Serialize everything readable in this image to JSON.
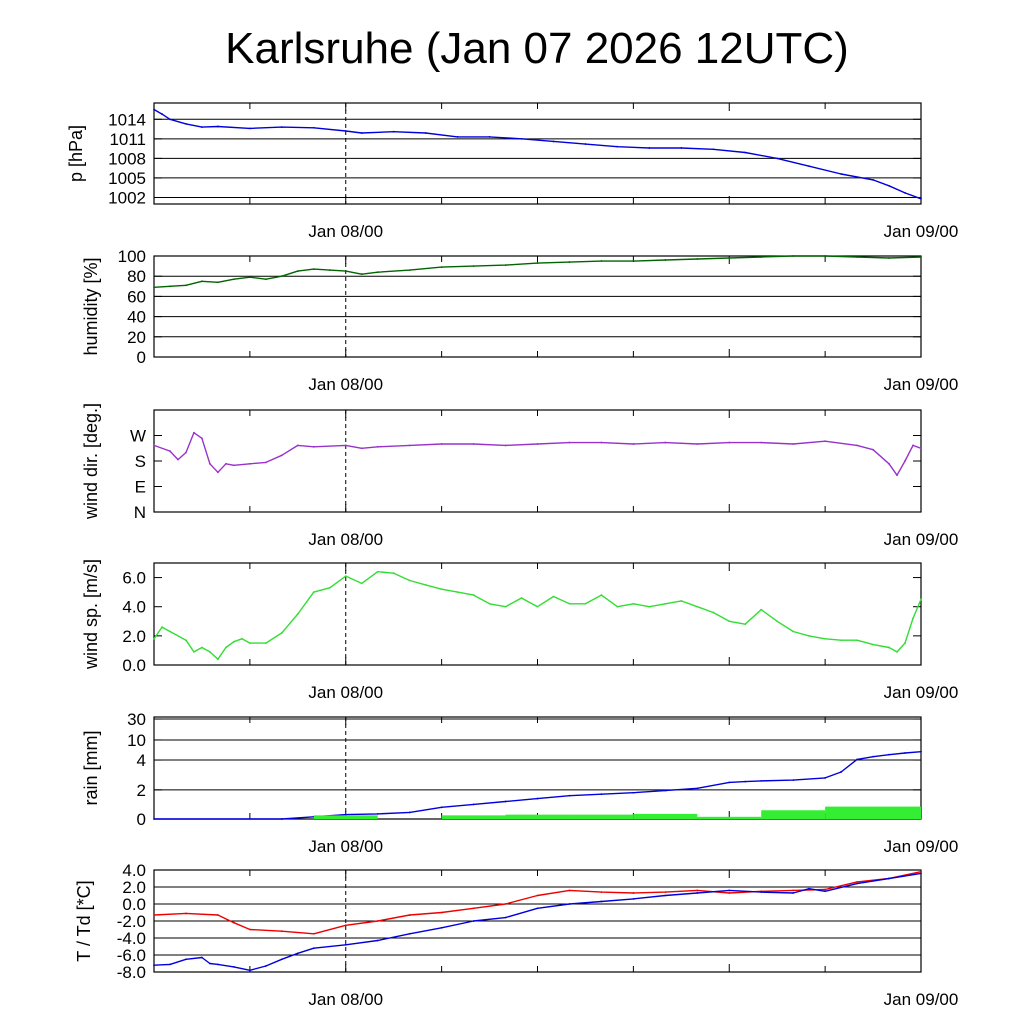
{
  "title": "Karlsruhe (Jan 07 2026 12UTC)",
  "x_tick_labels": [
    "Jan 08/00",
    "Jan 09/00"
  ],
  "chart_data": [
    {
      "type": "line",
      "ylabel": "p [hPa]",
      "yticks": [
        1002,
        1005,
        1008,
        1011,
        1014
      ],
      "ytick_labels": [
        "1002",
        "1005",
        "1008",
        "1011",
        "1014"
      ],
      "ylim": [
        1001,
        1016.5
      ],
      "x_range_hours": [
        12,
        60
      ],
      "grid": "horizontal",
      "series": [
        {
          "color": "#0000dd",
          "x": [
            12,
            12.5,
            13,
            14,
            15,
            16,
            18,
            20,
            22,
            24,
            25,
            27,
            29,
            31,
            33,
            35,
            37,
            39,
            41,
            43,
            45,
            47,
            49,
            51,
            53,
            55,
            57,
            58,
            59,
            60
          ],
          "y": [
            1015.5,
            1014.8,
            1014.0,
            1013.3,
            1012.8,
            1012.9,
            1012.6,
            1012.8,
            1012.7,
            1012.2,
            1011.9,
            1012.1,
            1011.9,
            1011.3,
            1011.3,
            1011.0,
            1010.6,
            1010.2,
            1009.8,
            1009.6,
            1009.6,
            1009.4,
            1008.9,
            1008.0,
            1006.8,
            1005.6,
            1004.7,
            1003.8,
            1002.7,
            1001.8
          ]
        }
      ]
    },
    {
      "type": "line",
      "ylabel": "humidity [%]",
      "yticks": [
        0,
        20,
        40,
        60,
        80,
        100
      ],
      "ytick_labels": [
        "0",
        "20",
        "40",
        "60",
        "80",
        "100"
      ],
      "ylim": [
        0,
        100
      ],
      "x_range_hours": [
        12,
        60
      ],
      "grid": "horizontal",
      "series": [
        {
          "color": "#006400",
          "x": [
            12,
            13,
            14,
            15,
            16,
            17,
            18,
            19,
            20,
            21,
            22,
            23,
            24,
            25,
            26,
            28,
            30,
            32,
            34,
            36,
            38,
            40,
            42,
            44,
            46,
            48,
            50,
            52,
            54,
            56,
            58,
            60
          ],
          "y": [
            69,
            70,
            71,
            75,
            74,
            77,
            79,
            77,
            80,
            85,
            87,
            86,
            85,
            82,
            84,
            86,
            89,
            90,
            91,
            93,
            94,
            95,
            95,
            96,
            97,
            98,
            99,
            100,
            100,
            99,
            98,
            99
          ]
        }
      ]
    },
    {
      "type": "line",
      "ylabel": "wind dir. [deg.]",
      "yticks": [
        0,
        90,
        180,
        270
      ],
      "ytick_labels": [
        "N",
        "E",
        "S",
        "W"
      ],
      "ylim": [
        0,
        360
      ],
      "x_range_hours": [
        12,
        60
      ],
      "grid": "none",
      "series": [
        {
          "color": "#9932cc",
          "x": [
            12,
            13,
            13.5,
            14,
            14.5,
            15,
            15.5,
            16,
            16.5,
            17,
            18,
            19,
            20,
            21,
            22,
            24,
            25,
            26,
            28,
            30,
            32,
            34,
            36,
            38,
            40,
            42,
            44,
            46,
            48,
            50,
            52,
            54,
            56,
            57,
            58,
            58.5,
            59,
            59.5,
            60
          ],
          "y": [
            235,
            215,
            185,
            210,
            280,
            260,
            170,
            140,
            170,
            165,
            170,
            175,
            200,
            235,
            230,
            235,
            225,
            230,
            235,
            240,
            240,
            235,
            240,
            245,
            245,
            240,
            245,
            240,
            245,
            245,
            240,
            250,
            235,
            220,
            170,
            130,
            180,
            235,
            225
          ]
        }
      ]
    },
    {
      "type": "line",
      "ylabel": "wind sp. [m/s]",
      "yticks": [
        0,
        2,
        4,
        6
      ],
      "ytick_labels": [
        "0.0",
        "2.0",
        "4.0",
        "6.0"
      ],
      "ylim": [
        0,
        7
      ],
      "x_range_hours": [
        12,
        60
      ],
      "grid": "none",
      "series": [
        {
          "color": "#33dd33",
          "x": [
            12,
            12.5,
            13,
            14,
            14.5,
            15,
            15.5,
            16,
            16.5,
            17,
            17.5,
            18,
            19,
            20,
            21,
            22,
            23,
            24,
            25,
            26,
            27,
            28,
            29,
            30,
            31,
            32,
            33,
            34,
            35,
            36,
            37,
            38,
            39,
            40,
            41,
            42,
            43,
            44,
            45,
            46,
            47,
            48,
            49,
            50,
            51,
            52,
            53,
            54,
            55,
            56,
            57,
            58,
            58.5,
            59,
            59.5,
            60
          ],
          "y": [
            1.8,
            2.6,
            2.3,
            1.7,
            0.9,
            1.2,
            0.9,
            0.4,
            1.2,
            1.6,
            1.8,
            1.5,
            1.5,
            2.2,
            3.5,
            5.0,
            5.3,
            6.1,
            5.6,
            6.4,
            6.3,
            5.8,
            5.5,
            5.2,
            5.0,
            4.8,
            4.2,
            4.0,
            4.6,
            4.0,
            4.7,
            4.2,
            4.2,
            4.8,
            4.0,
            4.2,
            4.0,
            4.2,
            4.4,
            4.0,
            3.6,
            3.0,
            2.8,
            3.8,
            3.0,
            2.3,
            2.0,
            1.8,
            1.7,
            1.7,
            1.4,
            1.2,
            0.9,
            1.5,
            3.2,
            4.5
          ]
        }
      ]
    },
    {
      "type": "bar+line",
      "ylabel": "rain [mm]",
      "yticks": [
        0,
        2,
        4,
        10,
        30
      ],
      "ytick_labels": [
        "0",
        "2",
        "4",
        "10",
        "30"
      ],
      "y_scale": "nonlinear",
      "x_range_hours": [
        12,
        60
      ],
      "grid": "horizontal",
      "series": [
        {
          "name_hidden": "accumulated",
          "color": "#0000dd",
          "x": [
            12,
            20,
            22,
            24,
            26,
            28,
            30,
            32,
            34,
            36,
            38,
            40,
            42,
            44,
            46,
            48,
            49,
            50,
            52,
            54,
            55,
            56,
            57,
            58,
            59,
            60
          ],
          "y": [
            0,
            0,
            0.15,
            0.3,
            0.35,
            0.45,
            0.8,
            1.0,
            1.2,
            1.4,
            1.6,
            1.7,
            1.8,
            1.95,
            2.1,
            2.5,
            2.55,
            2.6,
            2.65,
            2.8,
            3.2,
            4.2,
            5.0,
            5.6,
            6.1,
            6.5
          ]
        },
        {
          "name_hidden": "interval",
          "color": "#33ee33",
          "bars": [
            {
              "from": 22,
              "to": 26,
              "value": 0.25
            },
            {
              "from": 26,
              "to": 30,
              "value": 0.0
            },
            {
              "from": 30,
              "to": 34,
              "value": 0.25
            },
            {
              "from": 34,
              "to": 38,
              "value": 0.3
            },
            {
              "from": 38,
              "to": 42,
              "value": 0.3
            },
            {
              "from": 42,
              "to": 46,
              "value": 0.35
            },
            {
              "from": 46,
              "to": 50,
              "value": 0.15
            },
            {
              "from": 50,
              "to": 54,
              "value": 0.6
            },
            {
              "from": 54,
              "to": 60,
              "value": 0.85
            }
          ]
        }
      ]
    },
    {
      "type": "line",
      "ylabel": "T / Td [*C]",
      "yticks": [
        -8,
        -6,
        -4,
        -2,
        0,
        2,
        4
      ],
      "ytick_labels": [
        "-8.0",
        "-6.0",
        "-4.0",
        "-2.0",
        "0.0",
        "2.0",
        "4.0"
      ],
      "ylim": [
        -8,
        4
      ],
      "x_range_hours": [
        12,
        60
      ],
      "grid": "horizontal",
      "series": [
        {
          "color": "#ee0000",
          "x": [
            12,
            14,
            16,
            17,
            18,
            20,
            22,
            24,
            26,
            28,
            30,
            32,
            34,
            36,
            38,
            40,
            42,
            44,
            46,
            48,
            50,
            52,
            54,
            56,
            58,
            60
          ],
          "y": [
            -1.3,
            -1.1,
            -1.3,
            -2.2,
            -3.0,
            -3.2,
            -3.5,
            -2.5,
            -2.0,
            -1.3,
            -1.0,
            -0.5,
            0.0,
            1.0,
            1.6,
            1.4,
            1.3,
            1.4,
            1.6,
            1.3,
            1.5,
            1.6,
            1.7,
            2.6,
            3.0,
            3.8
          ]
        },
        {
          "color": "#0000dd",
          "x": [
            12,
            13,
            14,
            15,
            15.5,
            16,
            17,
            18,
            19,
            20,
            21,
            22,
            24,
            26,
            28,
            30,
            32,
            34,
            36,
            38,
            40,
            42,
            44,
            46,
            48,
            50,
            52,
            53,
            54,
            56,
            58,
            60
          ],
          "y": [
            -7.2,
            -7.1,
            -6.5,
            -6.3,
            -7.0,
            -7.1,
            -7.4,
            -7.8,
            -7.3,
            -6.5,
            -5.8,
            -5.2,
            -4.8,
            -4.3,
            -3.5,
            -2.8,
            -2.0,
            -1.6,
            -0.5,
            0.0,
            0.3,
            0.6,
            1.0,
            1.3,
            1.6,
            1.4,
            1.3,
            1.8,
            1.5,
            2.4,
            3.0,
            3.6
          ]
        }
      ]
    }
  ]
}
